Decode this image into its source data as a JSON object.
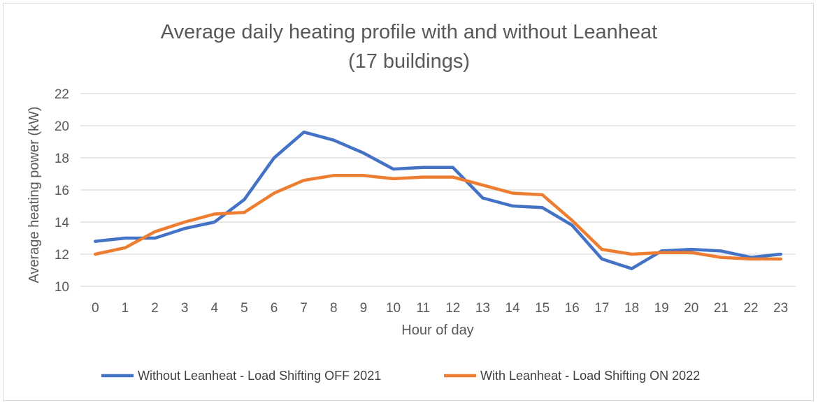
{
  "chart_data": {
    "type": "line",
    "title": [
      "Average daily heating profile with and without Leanheat",
      "(17 buildings)"
    ],
    "xlabel": "Hour of day",
    "ylabel": "Average heating power (kW)",
    "ylim": [
      10,
      22
    ],
    "yticks": [
      10,
      12,
      14,
      16,
      18,
      20,
      22
    ],
    "grid": true,
    "legend_position": "bottom",
    "categories": [
      "0",
      "1",
      "2",
      "3",
      "4",
      "5",
      "6",
      "7",
      "8",
      "9",
      "10",
      "11",
      "12",
      "13",
      "14",
      "15",
      "16",
      "17",
      "18",
      "19",
      "20",
      "21",
      "22",
      "23"
    ],
    "series": [
      {
        "name": "Without Leanheat  - Load Shifting OFF 2021",
        "color": "#4472c4",
        "values": [
          12.8,
          13.0,
          13.0,
          13.6,
          14.0,
          15.4,
          18.0,
          19.6,
          19.1,
          18.3,
          17.3,
          17.4,
          17.4,
          15.5,
          15.0,
          14.9,
          13.8,
          11.7,
          11.1,
          12.2,
          12.3,
          12.2,
          11.8,
          12.0
        ]
      },
      {
        "name": "With Leanheat - Load Shifting ON 2022",
        "color": "#ed7d31",
        "values": [
          12.0,
          12.4,
          13.4,
          14.0,
          14.5,
          14.6,
          15.8,
          16.6,
          16.9,
          16.9,
          16.7,
          16.8,
          16.8,
          16.3,
          15.8,
          15.7,
          14.1,
          12.3,
          12.0,
          12.1,
          12.1,
          11.8,
          11.7,
          11.7
        ]
      }
    ]
  }
}
